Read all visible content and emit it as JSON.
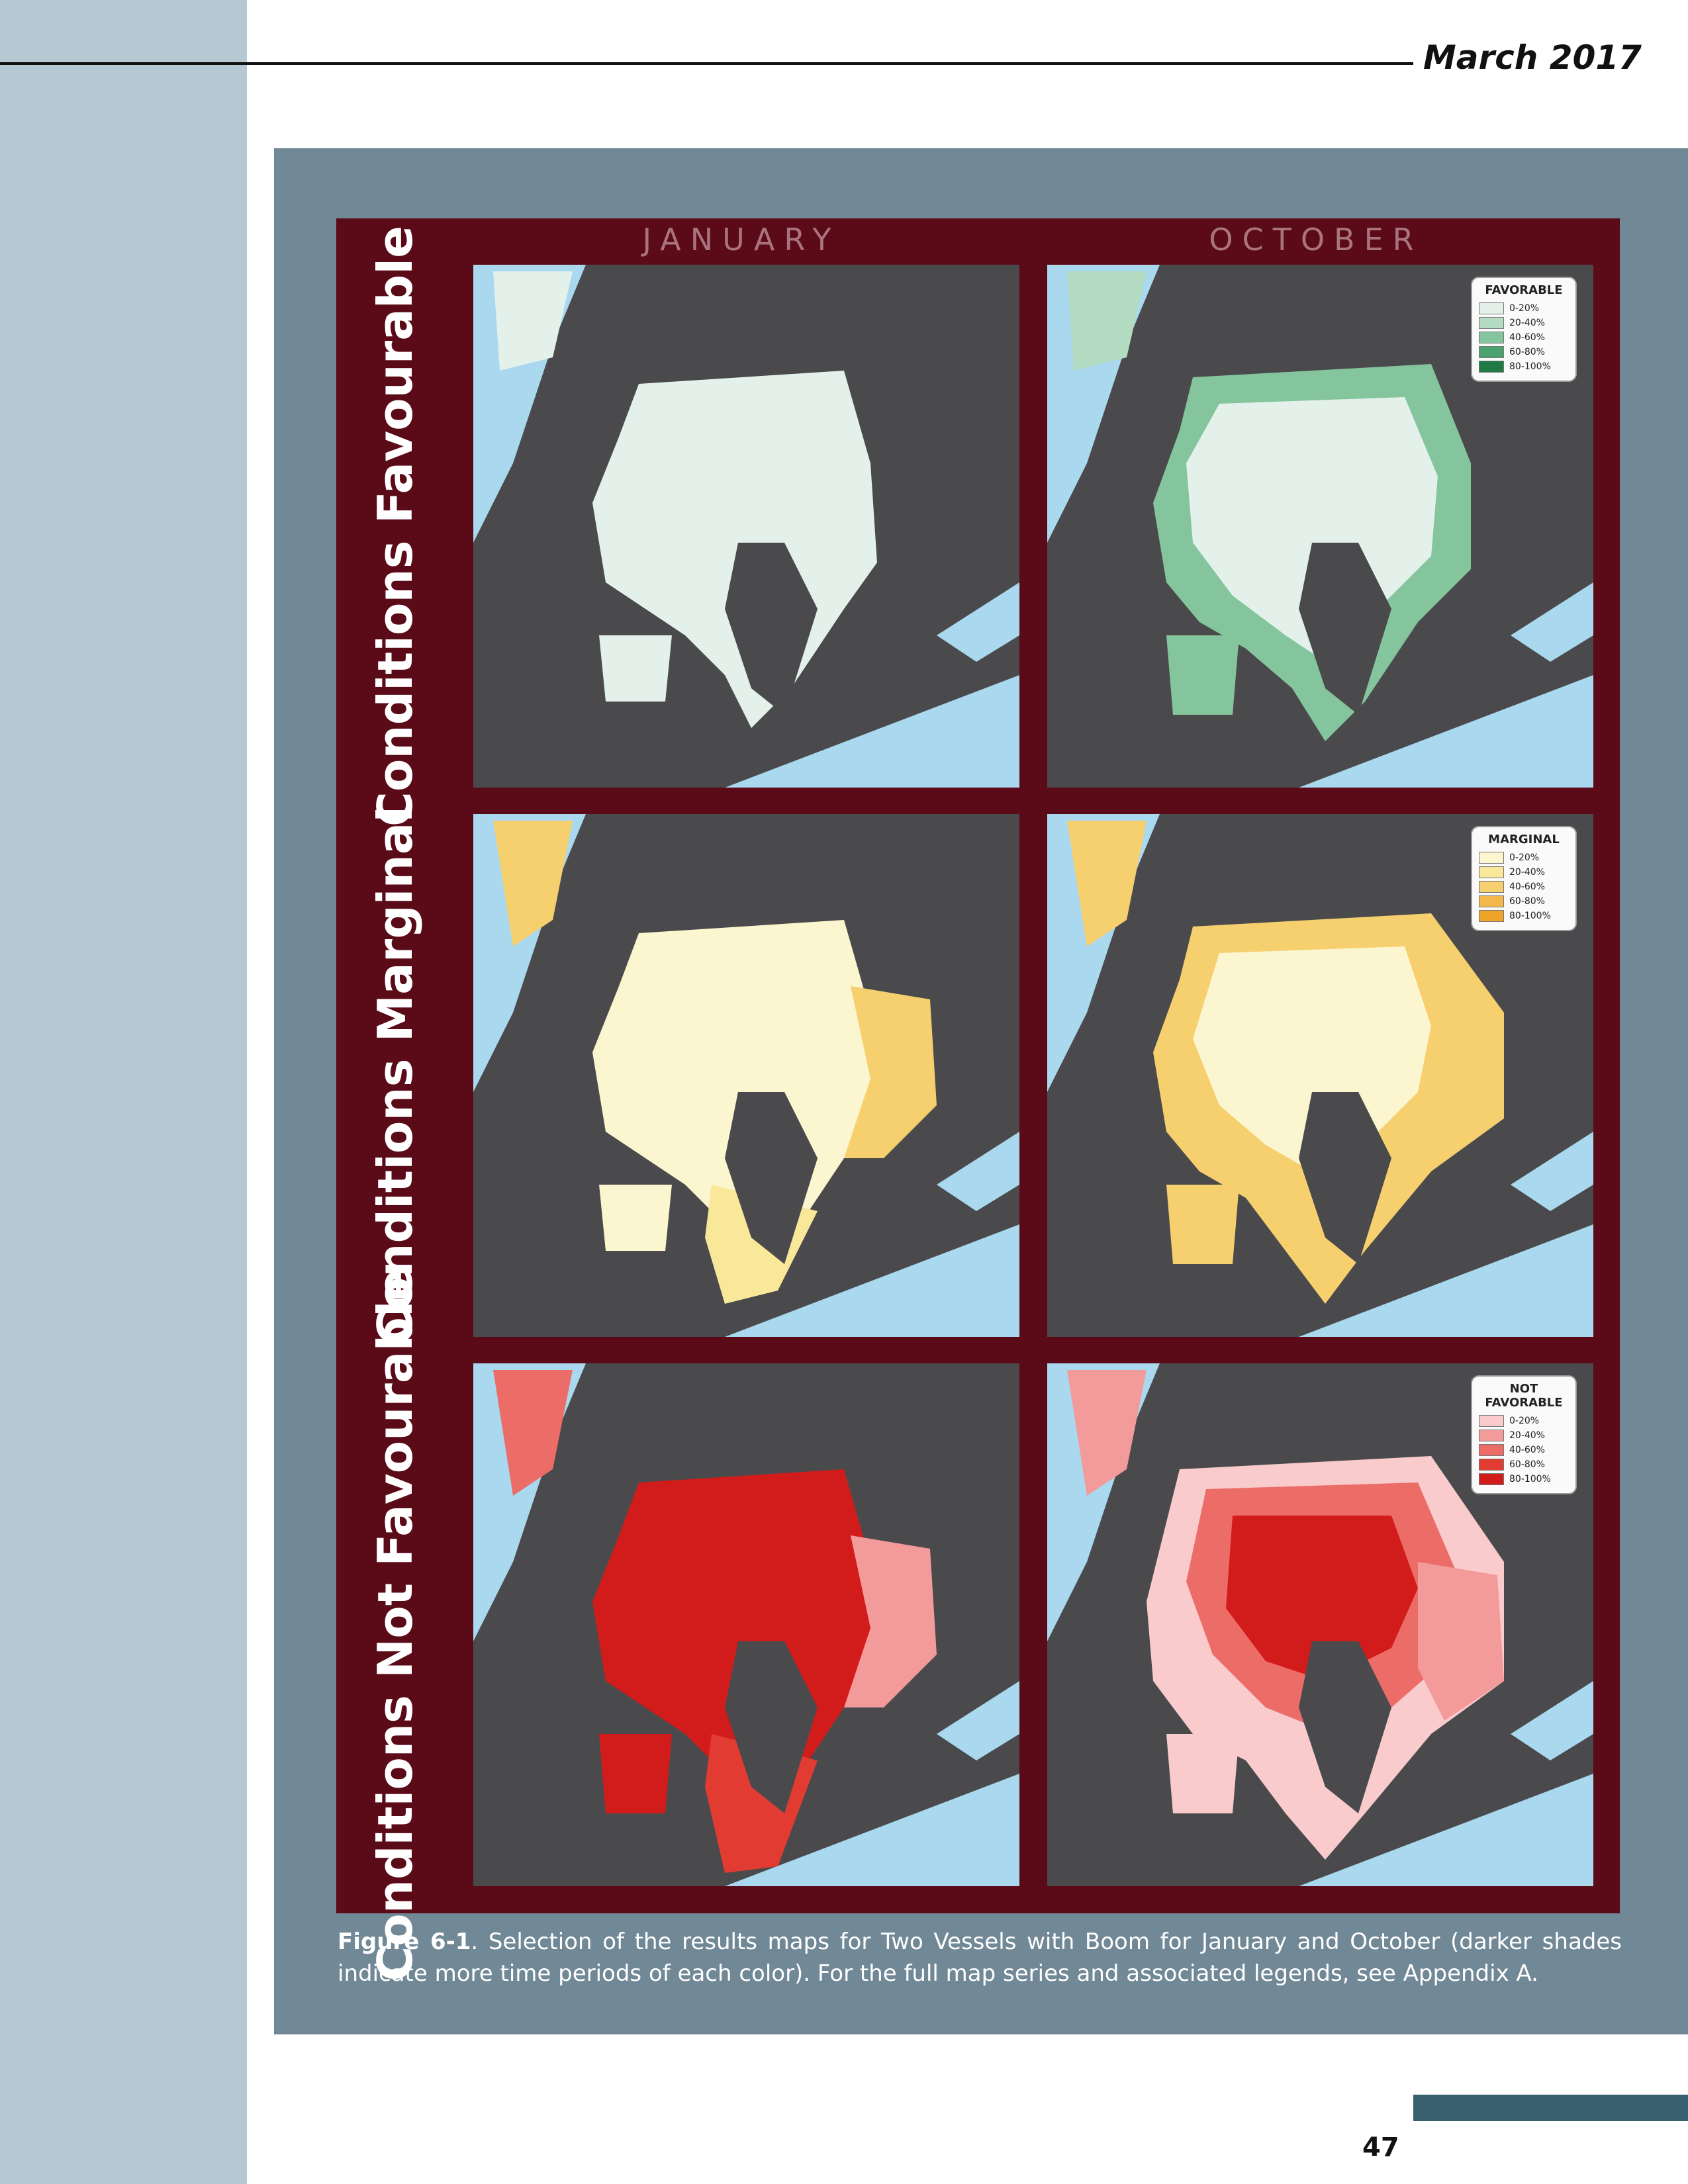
{
  "header": {
    "date": "March 2017"
  },
  "figure": {
    "columns": [
      "JANUARY",
      "OCTOBER"
    ],
    "rows": [
      "Conditions Favourable",
      "Conditions Marginal",
      "Conditions Not Favourable"
    ],
    "legends": {
      "favorable": {
        "title": "FAVORABLE",
        "items": [
          "0-20%",
          "20-40%",
          "40-60%",
          "60-80%",
          "80-100%"
        ],
        "colors": [
          "#e3f1ea",
          "#b4dcc3",
          "#84c59d",
          "#4aa36c",
          "#1f7a43"
        ]
      },
      "marginal": {
        "title": "MARGINAL",
        "items": [
          "0-20%",
          "20-40%",
          "40-60%",
          "60-80%",
          "80-100%"
        ],
        "colors": [
          "#fbf6cf",
          "#f9e79a",
          "#f6cf6e",
          "#f2b84a",
          "#eea428"
        ]
      },
      "not_favorable": {
        "title": "NOT FAVORABLE",
        "items": [
          "0-20%",
          "20-40%",
          "40-60%",
          "60-80%",
          "80-100%"
        ],
        "colors": [
          "#f9cbcd",
          "#f29b9a",
          "#ec6d67",
          "#e23c32",
          "#d21c1c"
        ]
      }
    },
    "colors": {
      "land": "#4a4a4c",
      "open_water": "#a9d8ef",
      "frame": "#5b0a17"
    }
  },
  "caption": {
    "label": "Figure 6-1",
    "text": ". Selection of the results maps for Two Vessels with Boom for January and October (darker shades indicate more time periods of each color). For the full map series and associated legends, see Appendix A."
  },
  "page_number": "47"
}
